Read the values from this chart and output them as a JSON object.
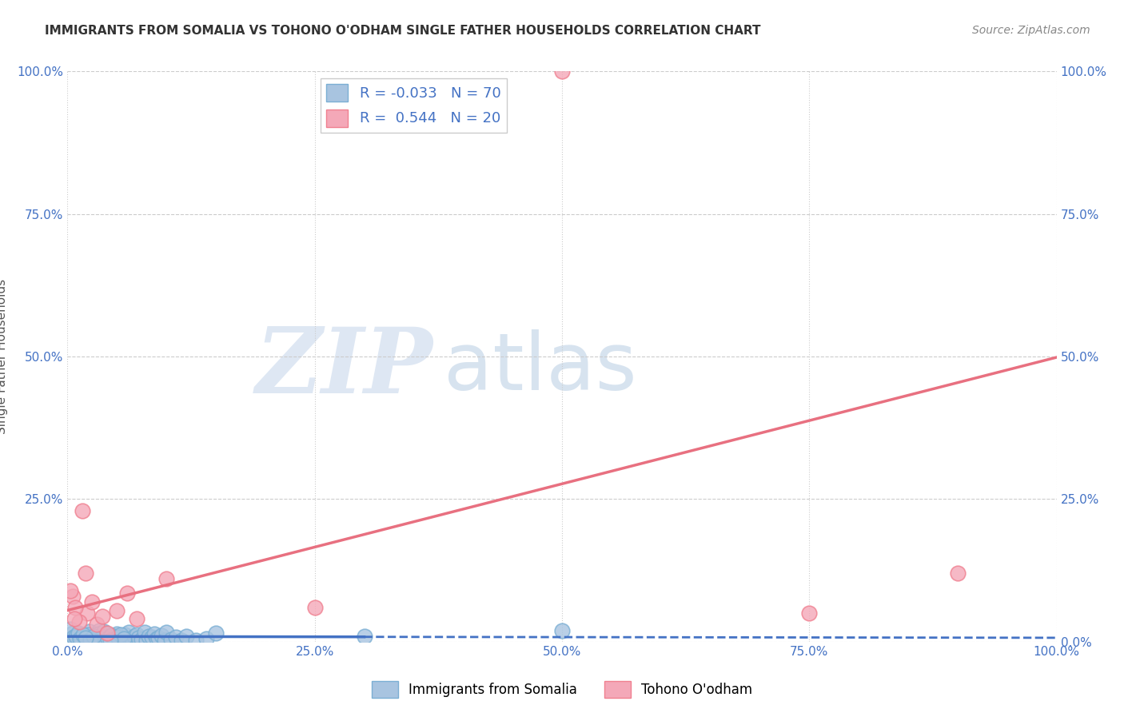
{
  "title": "IMMIGRANTS FROM SOMALIA VS TOHONO O'ODHAM SINGLE FATHER HOUSEHOLDS CORRELATION CHART",
  "source": "Source: ZipAtlas.com",
  "ylabel": "Single Father Households",
  "ytick_positions": [
    0,
    25,
    50,
    75,
    100
  ],
  "xtick_positions": [
    0,
    25,
    50,
    75,
    100
  ],
  "legend_label1": "Immigrants from Somalia",
  "legend_label2": "Tohono O'odham",
  "r_blue": -0.033,
  "r_pink": 0.544,
  "n_blue": 70,
  "n_pink": 20,
  "blue_edge_color": "#7bafd4",
  "pink_edge_color": "#f08090",
  "blue_scatter_color": "#a8c4e0",
  "pink_scatter_color": "#f4a8b8",
  "blue_line_color": "#4472c4",
  "pink_line_color": "#e87080",
  "blue_scatter_x": [
    0.5,
    0.8,
    1.2,
    1.5,
    2.0,
    2.2,
    2.5,
    2.8,
    3.0,
    3.2,
    3.5,
    3.8,
    4.0,
    4.2,
    4.5,
    4.8,
    5.0,
    5.2,
    5.5,
    5.8,
    6.0,
    6.2,
    6.5,
    6.8,
    7.0,
    7.2,
    7.5,
    7.8,
    8.0,
    8.2,
    8.5,
    8.8,
    9.0,
    9.2,
    9.5,
    9.8,
    10.0,
    10.5,
    11.0,
    11.5,
    12.0,
    13.0,
    14.0,
    15.0,
    0.3,
    0.6,
    0.9,
    1.1,
    1.4,
    1.7,
    2.1,
    2.4,
    2.7,
    3.1,
    3.4,
    3.7,
    4.1,
    4.4,
    4.7,
    5.1,
    5.4,
    5.7,
    30.0,
    50.0,
    1.3,
    1.6,
    2.3,
    2.6,
    1.8,
    4.3
  ],
  "blue_scatter_y": [
    1.5,
    0.5,
    0.8,
    1.2,
    0.3,
    1.8,
    0.6,
    1.0,
    0.4,
    2.0,
    0.7,
    1.5,
    0.3,
    0.9,
    1.1,
    0.5,
    1.4,
    0.8,
    0.6,
    1.2,
    0.4,
    1.7,
    0.5,
    0.9,
    1.3,
    0.7,
    0.4,
    1.6,
    0.3,
    1.0,
    0.8,
    1.4,
    0.5,
    0.7,
    1.1,
    0.3,
    1.6,
    0.4,
    0.8,
    0.2,
    1.0,
    0.3,
    0.5,
    1.5,
    2.2,
    0.8,
    1.0,
    1.5,
    0.4,
    0.7,
    1.2,
    0.3,
    0.9,
    1.4,
    0.6,
    1.8,
    0.5,
    1.1,
    0.3,
    0.8,
    1.3,
    0.5,
    1.0,
    2.0,
    0.6,
    1.2,
    0.4,
    0.9,
    0.7,
    0.3
  ],
  "pink_scatter_x": [
    0.5,
    1.5,
    2.0,
    2.5,
    3.0,
    4.0,
    5.0,
    7.0,
    10.0,
    50.0,
    0.8,
    1.2,
    1.8,
    3.5,
    6.0,
    75.0,
    90.0,
    0.3,
    0.7,
    25.0
  ],
  "pink_scatter_y": [
    8.0,
    23.0,
    5.0,
    7.0,
    3.0,
    1.5,
    5.5,
    4.0,
    11.0,
    100.0,
    6.0,
    3.5,
    12.0,
    4.5,
    8.5,
    5.0,
    12.0,
    9.0,
    4.0,
    6.0
  ],
  "watermark_zip_color": "#c8d8ec",
  "watermark_atlas_color": "#b0c8e0",
  "grid_color": "#cccccc",
  "tick_label_color": "#4472c4",
  "title_color": "#333333",
  "source_color": "#888888"
}
